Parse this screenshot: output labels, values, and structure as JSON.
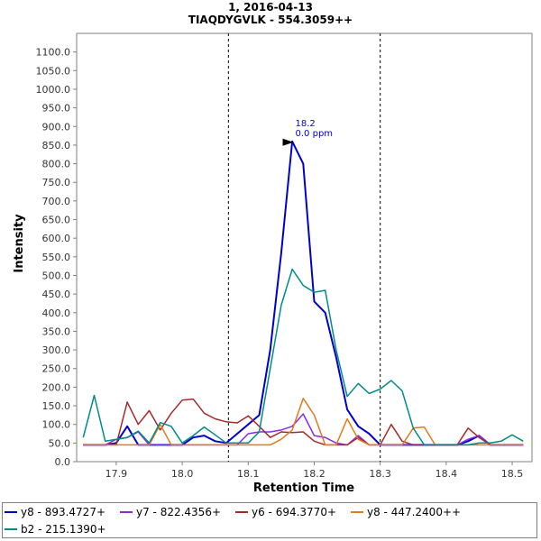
{
  "chart_data": {
    "type": "line",
    "title": "1, 2016-04-13",
    "subtitle": "TIAQDYGVLK - 554.3059++",
    "xlabel": "Retention Time",
    "ylabel": "Intensity",
    "xlim": [
      17.84,
      18.53
    ],
    "ylim": [
      0,
      1150
    ],
    "xticks": [
      17.9,
      18.0,
      18.1,
      18.2,
      18.3,
      18.4,
      18.5
    ],
    "xtick_labels": [
      "17.9",
      "18.0",
      "18.1",
      "18.2",
      "18.3",
      "18.4",
      "18.5"
    ],
    "yticks": [
      0,
      50,
      100,
      150,
      200,
      250,
      300,
      350,
      400,
      450,
      500,
      550,
      600,
      650,
      700,
      750,
      800,
      850,
      900,
      950,
      1000,
      1050,
      1100
    ],
    "ytick_labels": [
      "0.0",
      "50.0",
      "100.0",
      "150.0",
      "200.0",
      "250.0",
      "300.0",
      "350.0",
      "400.0",
      "450.0",
      "500.0",
      "550.0",
      "600.0",
      "650.0",
      "700.0",
      "750.0",
      "800.0",
      "850.0",
      "900.0",
      "950.0",
      "1000.0",
      "1050.0",
      "1100.0"
    ],
    "grid": false,
    "legend_position": "bottom",
    "vlines": [
      18.07,
      18.3
    ],
    "peak_annotation": {
      "x": 18.17,
      "y": 860,
      "lines": [
        "18.2",
        "0.0 ppm"
      ]
    },
    "x": [
      17.85,
      17.8667,
      17.8833,
      17.9,
      17.9167,
      17.9333,
      17.95,
      17.9667,
      17.9833,
      18.0,
      18.0167,
      18.0333,
      18.05,
      18.0667,
      18.0833,
      18.1,
      18.1167,
      18.1333,
      18.15,
      18.1667,
      18.1833,
      18.2,
      18.2167,
      18.2333,
      18.25,
      18.2667,
      18.2833,
      18.3,
      18.3167,
      18.3333,
      18.35,
      18.3667,
      18.3833,
      18.4,
      18.4167,
      18.4333,
      18.45,
      18.4667,
      18.4833,
      18.5,
      18.5167
    ],
    "series": [
      {
        "name": "y8 - 893.4727+",
        "color": "#0000cc",
        "width": 2,
        "values": [
          45,
          45,
          45,
          50,
          95,
          45,
          45,
          45,
          45,
          45,
          65,
          70,
          55,
          50,
          75,
          100,
          125,
          300,
          560,
          860,
          800,
          430,
          400,
          280,
          140,
          95,
          75,
          45,
          45,
          45,
          45,
          45,
          45,
          45,
          45,
          55,
          70,
          45,
          45,
          45,
          45
        ]
      },
      {
        "name": "y7 - 822.4356+",
        "color": "#8a2be2",
        "width": 1.5,
        "values": [
          45,
          45,
          45,
          60,
          65,
          80,
          45,
          45,
          45,
          45,
          45,
          45,
          45,
          45,
          45,
          75,
          80,
          80,
          85,
          95,
          128,
          70,
          65,
          50,
          45,
          70,
          45,
          45,
          45,
          45,
          45,
          45,
          45,
          45,
          45,
          60,
          70,
          45,
          45,
          45,
          45
        ]
      },
      {
        "name": "y6 - 694.3770+",
        "color": "#a52a2a",
        "width": 1.5,
        "values": [
          45,
          45,
          45,
          45,
          160,
          100,
          137,
          85,
          130,
          165,
          168,
          130,
          115,
          107,
          104,
          123,
          95,
          65,
          80,
          78,
          80,
          55,
          45,
          45,
          45,
          65,
          45,
          45,
          100,
          55,
          45,
          45,
          45,
          45,
          45,
          90,
          65,
          45,
          45,
          45,
          45
        ]
      },
      {
        "name": "y8 - 447.2400++",
        "color": "#e07b1a",
        "width": 1.5,
        "values": [
          45,
          45,
          45,
          45,
          45,
          45,
          45,
          100,
          45,
          45,
          45,
          45,
          45,
          45,
          45,
          45,
          45,
          45,
          60,
          85,
          170,
          125,
          45,
          45,
          115,
          60,
          45,
          45,
          45,
          45,
          90,
          93,
          45,
          45,
          45,
          45,
          45,
          45,
          45,
          45,
          45
        ]
      },
      {
        "name": "b2 - 215.1390+",
        "color": "#008b8b",
        "width": 1.5,
        "values": [
          65,
          178,
          55,
          60,
          65,
          82,
          50,
          105,
          95,
          50,
          70,
          93,
          72,
          50,
          50,
          50,
          80,
          250,
          420,
          517,
          473,
          455,
          460,
          300,
          175,
          210,
          183,
          195,
          218,
          190,
          90,
          45,
          45,
          45,
          45,
          45,
          50,
          50,
          55,
          72,
          55
        ]
      }
    ]
  }
}
